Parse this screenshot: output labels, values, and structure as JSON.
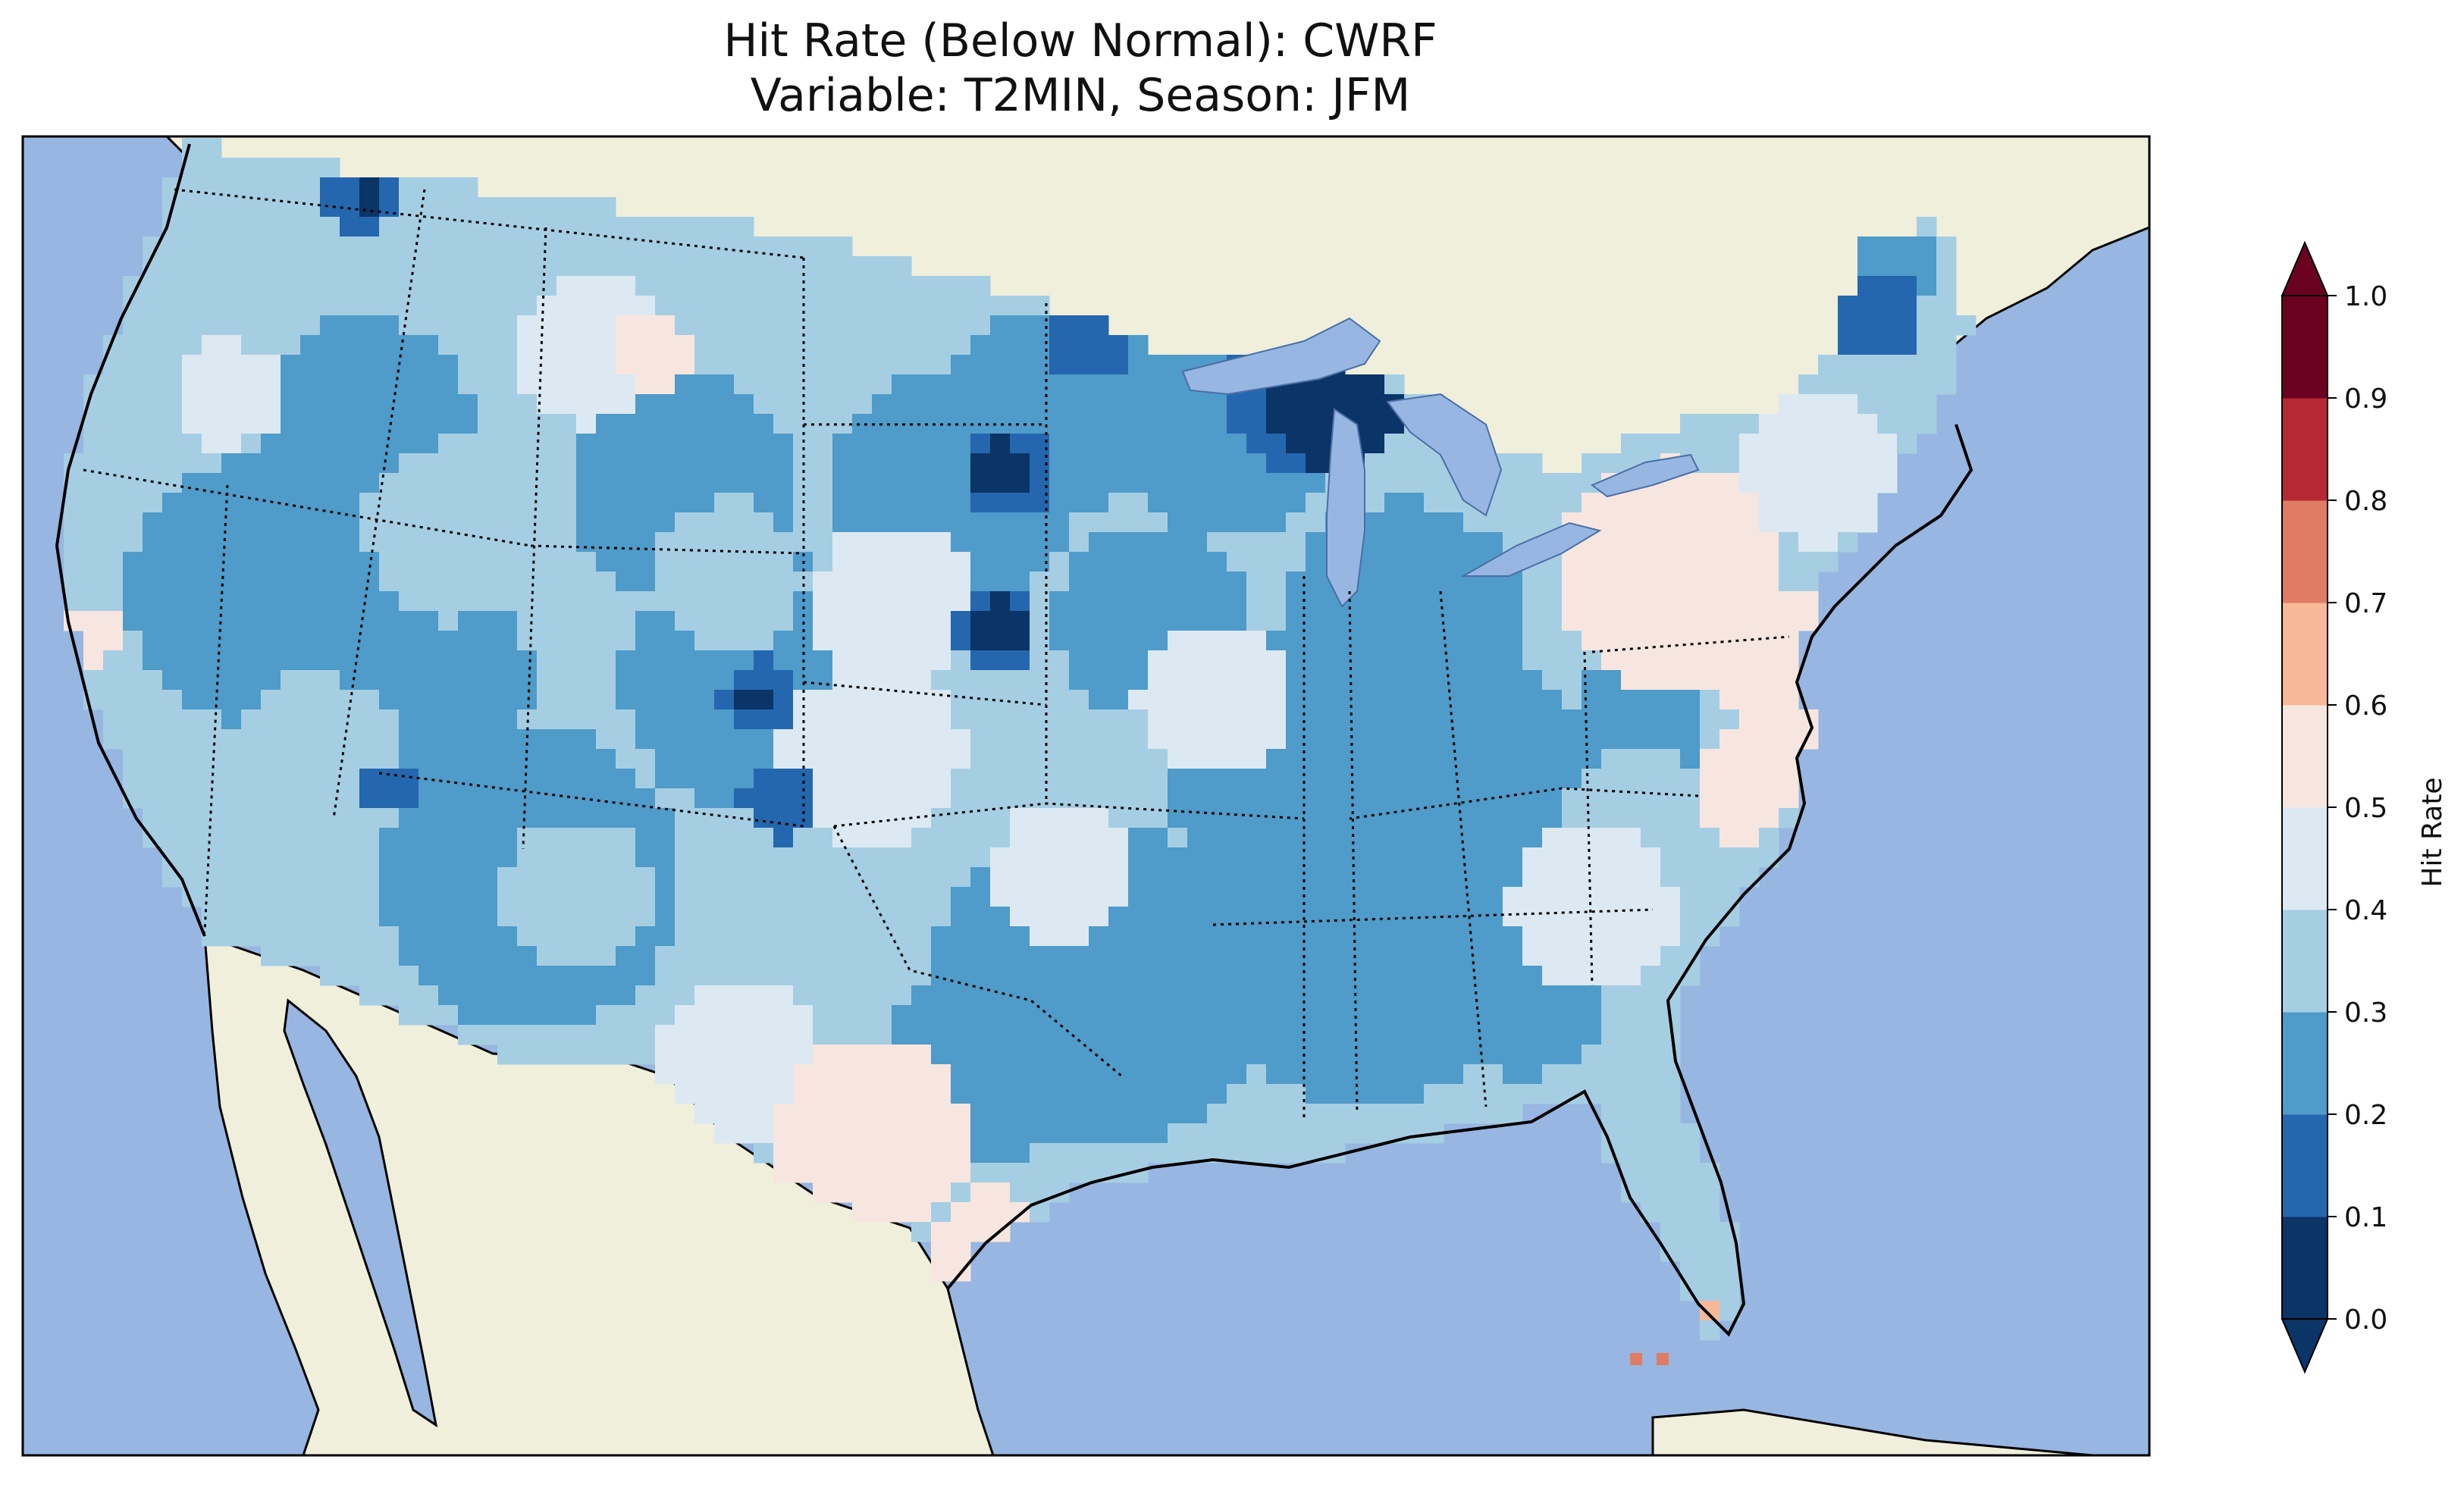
{
  "title": {
    "line1": "Hit Rate (Below Normal): CWRF",
    "line2": "Variable: T2MIN, Season: JFM"
  },
  "colorbar": {
    "label": "Hit Rate",
    "ticks": [
      "0.0",
      "0.1",
      "0.2",
      "0.3",
      "0.4",
      "0.5",
      "0.6",
      "0.7",
      "0.8",
      "0.9",
      "1.0"
    ],
    "colors": [
      "#053061",
      "#2166ac",
      "#4393c3",
      "#92c5de",
      "#d1e5f0",
      "#f7f7f7",
      "#fddbc7",
      "#f4a582",
      "#d6604d",
      "#b2182b",
      "#67001f"
    ],
    "bins": [
      {
        "range": "0.0-0.1",
        "color": "#0b3467"
      },
      {
        "range": "0.1-0.2",
        "color": "#2467ae"
      },
      {
        "range": "0.2-0.3",
        "color": "#4f9bc9"
      },
      {
        "range": "0.3-0.4",
        "color": "#a6cee3"
      },
      {
        "range": "0.4-0.5",
        "color": "#dde9f2"
      },
      {
        "range": "0.5-0.6",
        "color": "#f7e6e0"
      },
      {
        "range": "0.6-0.7",
        "color": "#f6b899"
      },
      {
        "range": "0.7-0.8",
        "color": "#df7c63"
      },
      {
        "range": "0.8-0.9",
        "color": "#b72835"
      },
      {
        "range": "0.9-1.0",
        "color": "#6b0121"
      }
    ],
    "extend": "both"
  },
  "map": {
    "region": "Contiguous United States",
    "ocean_color": "#97b6e1",
    "land_color": "#efefdc",
    "state_borders": "dotted",
    "coastlines": "solid"
  }
}
